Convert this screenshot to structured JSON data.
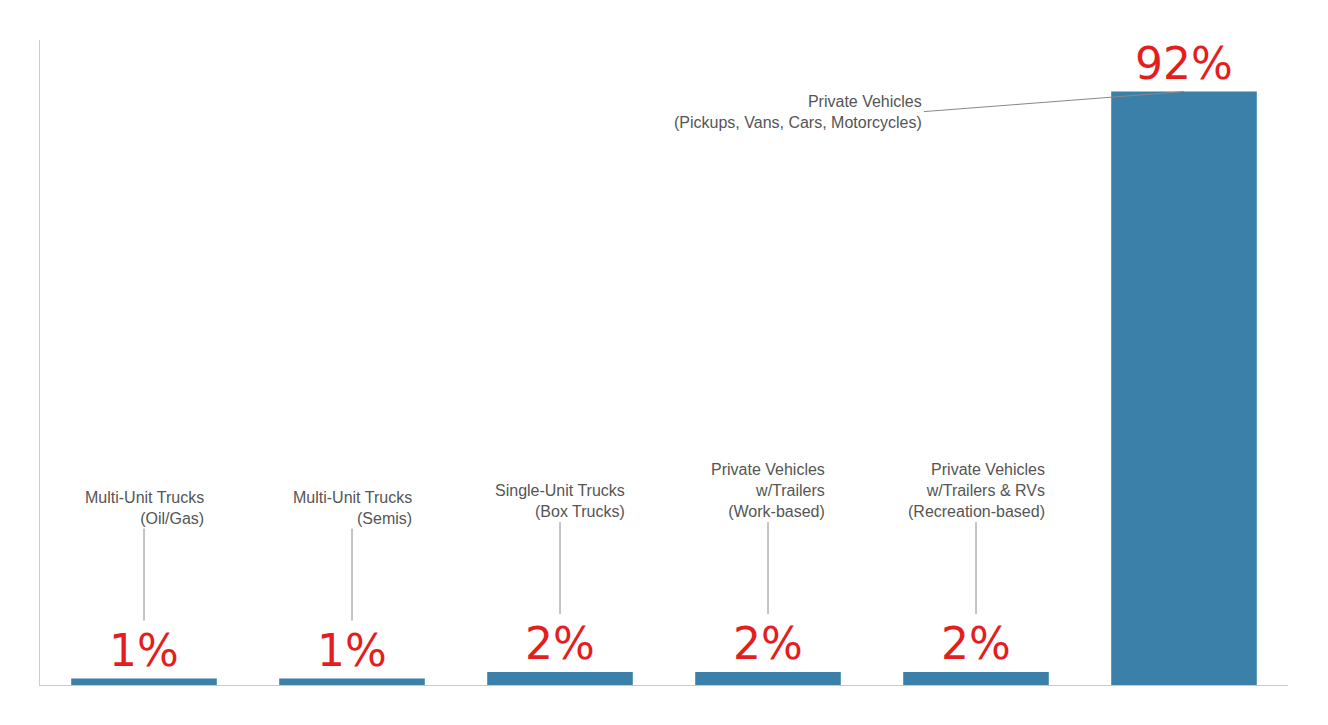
{
  "chart_data": {
    "type": "bar",
    "categories": [
      "Multi-Unit Trucks\n(Oil/Gas)",
      "Multi-Unit Trucks\n(Semis)",
      "Single-Unit Trucks\n(Box Trucks)",
      "Private Vehicles\nw/Trailers\n(Work-based)",
      "Private Vehicles\nw/Trailers & RVs\n(Recreation-based)",
      "Private Vehicles\n(Pickups, Vans, Cars, Motorcycles)"
    ],
    "values": [
      1,
      1,
      2,
      2,
      2,
      92
    ],
    "value_labels": [
      "1%",
      "1%",
      "2%",
      "2%",
      "2%",
      "92%"
    ],
    "data_labels": true,
    "color": "#3b80a8",
    "ylim": [
      0,
      100
    ],
    "tick_labels": false,
    "grid": false
  }
}
